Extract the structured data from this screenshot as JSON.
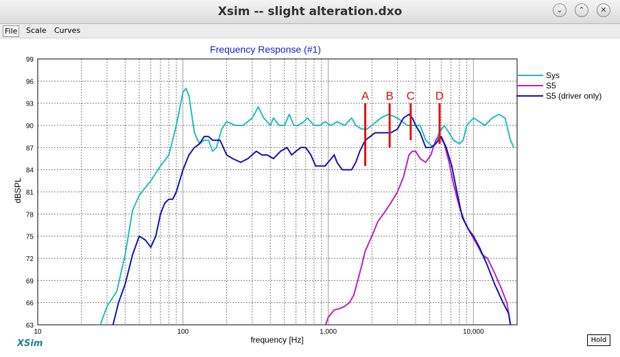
{
  "window": {
    "title": "Xsim -- slight alteration.dxo"
  },
  "menu": [
    "File",
    "Scale",
    "Curves"
  ],
  "brand": "XSim",
  "hold_label": "Hold",
  "colors": {
    "sys": "#1fbcbc",
    "s5": "#c11ec1",
    "s5_driver": "#1010b8",
    "marker": "#e01010",
    "title": "#1a1ad0"
  },
  "chart_data": {
    "type": "line",
    "title": "Frequency Response (#1)",
    "xlabel": "frequency [Hz]",
    "ylabel": "dBSPL",
    "xscale": "log",
    "xlim": [
      10,
      20000
    ],
    "ylim": [
      63,
      99
    ],
    "yticks": [
      63,
      66,
      69,
      72,
      75,
      78,
      81,
      84,
      87,
      90,
      93,
      96,
      99
    ],
    "xticks": [
      10,
      100,
      1000,
      10000
    ],
    "xtick_labels": [
      "10",
      "100",
      "1,000",
      "10,000"
    ],
    "grid": true,
    "legend_position": "right",
    "series": [
      {
        "name": "Sys",
        "color": "#1fbcbc",
        "points": [
          [
            27,
            63
          ],
          [
            30,
            65.5
          ],
          [
            35,
            67.5
          ],
          [
            40,
            72.5
          ],
          [
            45,
            78.5
          ],
          [
            50,
            80.5
          ],
          [
            60,
            82.5
          ],
          [
            70,
            84.5
          ],
          [
            80,
            86
          ],
          [
            90,
            90
          ],
          [
            100,
            94.5
          ],
          [
            105,
            95
          ],
          [
            110,
            94
          ],
          [
            120,
            89
          ],
          [
            130,
            87.5
          ],
          [
            140,
            88
          ],
          [
            150,
            88
          ],
          [
            160,
            86.5
          ],
          [
            170,
            87
          ],
          [
            185,
            89.5
          ],
          [
            200,
            90.5
          ],
          [
            230,
            90
          ],
          [
            260,
            90
          ],
          [
            300,
            91
          ],
          [
            330,
            92.5
          ],
          [
            360,
            91
          ],
          [
            400,
            90
          ],
          [
            420,
            91
          ],
          [
            460,
            90
          ],
          [
            500,
            90
          ],
          [
            540,
            91.5
          ],
          [
            580,
            90
          ],
          [
            620,
            90
          ],
          [
            680,
            90.5
          ],
          [
            720,
            91
          ],
          [
            800,
            90
          ],
          [
            880,
            90
          ],
          [
            950,
            90.5
          ],
          [
            1050,
            90
          ],
          [
            1150,
            90.5
          ],
          [
            1300,
            90
          ],
          [
            1450,
            91
          ],
          [
            1550,
            90
          ],
          [
            1700,
            89.5
          ],
          [
            1850,
            89.5
          ],
          [
            2000,
            90
          ],
          [
            2300,
            91
          ],
          [
            2600,
            91.5
          ],
          [
            3000,
            91
          ],
          [
            3500,
            90
          ],
          [
            3900,
            90
          ],
          [
            4300,
            90
          ],
          [
            4700,
            88
          ],
          [
            5300,
            87
          ],
          [
            5800,
            89
          ],
          [
            6300,
            90
          ],
          [
            6800,
            89
          ],
          [
            7300,
            88
          ],
          [
            8000,
            87.5
          ],
          [
            8500,
            88
          ],
          [
            9000,
            90
          ],
          [
            10000,
            91
          ],
          [
            11000,
            90.5
          ],
          [
            12000,
            90
          ],
          [
            13500,
            91
          ],
          [
            15000,
            91.5
          ],
          [
            16500,
            91
          ],
          [
            18000,
            88
          ],
          [
            19000,
            87
          ]
        ]
      },
      {
        "name": "S5",
        "color": "#c11ec1",
        "points": [
          [
            960,
            63
          ],
          [
            1000,
            64
          ],
          [
            1100,
            65
          ],
          [
            1200,
            65.2
          ],
          [
            1300,
            65.5
          ],
          [
            1400,
            66
          ],
          [
            1500,
            67
          ],
          [
            1600,
            69
          ],
          [
            1700,
            71
          ],
          [
            1800,
            73
          ],
          [
            2000,
            75
          ],
          [
            2200,
            77
          ],
          [
            2400,
            78
          ],
          [
            2700,
            79.5
          ],
          [
            3000,
            81
          ],
          [
            3300,
            83
          ],
          [
            3600,
            86
          ],
          [
            3800,
            86.5
          ],
          [
            4000,
            86.5
          ],
          [
            4300,
            85.5
          ],
          [
            4700,
            85
          ],
          [
            5100,
            86
          ],
          [
            5500,
            88
          ],
          [
            5900,
            88.5
          ],
          [
            6300,
            87.5
          ],
          [
            6800,
            85
          ],
          [
            7300,
            82
          ],
          [
            8000,
            79
          ],
          [
            8700,
            77
          ],
          [
            9500,
            75.5
          ],
          [
            10500,
            74
          ],
          [
            11500,
            72.5
          ],
          [
            12500,
            72
          ],
          [
            14000,
            70
          ],
          [
            15500,
            68
          ],
          [
            17000,
            66
          ],
          [
            18000,
            63
          ]
        ]
      },
      {
        "name": "S5 (driver only)",
        "color": "#1010b8",
        "points": [
          [
            33,
            63
          ],
          [
            36,
            66
          ],
          [
            40,
            68.5
          ],
          [
            45,
            72.5
          ],
          [
            50,
            75
          ],
          [
            55,
            74.5
          ],
          [
            60,
            73.5
          ],
          [
            65,
            75
          ],
          [
            70,
            78
          ],
          [
            75,
            79.5
          ],
          [
            80,
            80
          ],
          [
            85,
            80
          ],
          [
            90,
            81
          ],
          [
            100,
            84
          ],
          [
            110,
            86
          ],
          [
            120,
            87
          ],
          [
            130,
            87.5
          ],
          [
            140,
            88.5
          ],
          [
            150,
            88.5
          ],
          [
            160,
            88
          ],
          [
            180,
            88
          ],
          [
            200,
            86
          ],
          [
            220,
            85.5
          ],
          [
            250,
            85
          ],
          [
            280,
            85.5
          ],
          [
            320,
            86.5
          ],
          [
            350,
            86
          ],
          [
            380,
            86
          ],
          [
            420,
            85.5
          ],
          [
            470,
            86.5
          ],
          [
            520,
            87
          ],
          [
            560,
            86
          ],
          [
            600,
            86.5
          ],
          [
            650,
            87
          ],
          [
            700,
            87
          ],
          [
            760,
            86
          ],
          [
            820,
            84.5
          ],
          [
            880,
            84.5
          ],
          [
            950,
            84.5
          ],
          [
            1050,
            85.5
          ],
          [
            1100,
            86
          ],
          [
            1150,
            85
          ],
          [
            1250,
            84
          ],
          [
            1350,
            84
          ],
          [
            1450,
            84
          ],
          [
            1550,
            85
          ],
          [
            1650,
            86.5
          ],
          [
            1800,
            88
          ],
          [
            1950,
            88.5
          ],
          [
            2100,
            89
          ],
          [
            2400,
            89
          ],
          [
            2700,
            89
          ],
          [
            3000,
            89.5
          ],
          [
            3300,
            91
          ],
          [
            3600,
            91.5
          ],
          [
            3800,
            91
          ],
          [
            4000,
            90
          ],
          [
            4300,
            89
          ],
          [
            4700,
            87
          ],
          [
            5100,
            87
          ],
          [
            5500,
            87.5
          ],
          [
            6000,
            88.5
          ],
          [
            6500,
            87
          ],
          [
            7100,
            84.5
          ],
          [
            7700,
            81
          ],
          [
            8400,
            77.5
          ],
          [
            9200,
            76
          ],
          [
            10000,
            75
          ],
          [
            11000,
            73.5
          ],
          [
            12500,
            71
          ],
          [
            14000,
            68.5
          ],
          [
            16000,
            66
          ],
          [
            17500,
            64.5
          ],
          [
            18000,
            63
          ]
        ]
      }
    ],
    "markers": [
      {
        "label": "A",
        "freq": 1800,
        "y0": 84.5,
        "y1": 93
      },
      {
        "label": "B",
        "freq": 2650,
        "y0": 87,
        "y1": 93
      },
      {
        "label": "C",
        "freq": 3700,
        "y0": 88,
        "y1": 93
      },
      {
        "label": "D",
        "freq": 5850,
        "y0": 87.5,
        "y1": 93
      }
    ]
  }
}
